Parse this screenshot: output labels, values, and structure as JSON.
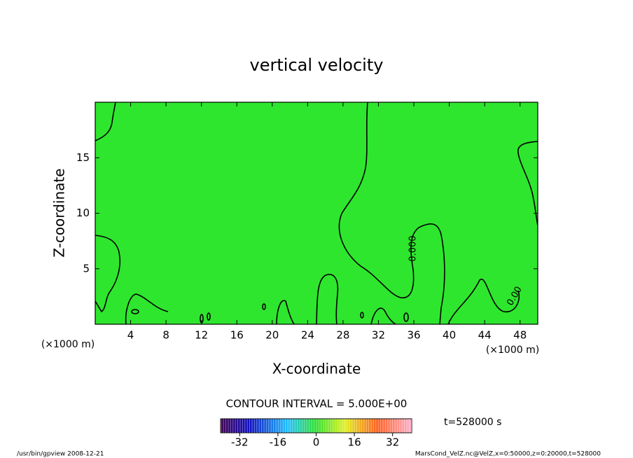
{
  "chart_data": {
    "type": "contour",
    "title": "vertical velocity",
    "xlabel": "X-coordinate",
    "ylabel": "Z-coordinate",
    "x_unit_label": "(×1000 m)",
    "xlim": [
      0,
      50
    ],
    "xticks": [
      4,
      8,
      12,
      16,
      20,
      24,
      28,
      32,
      36,
      40,
      44,
      48
    ],
    "ylim": [
      0,
      20
    ],
    "yticks": [
      5,
      10,
      15
    ],
    "field_color": "#2ee62e",
    "contour_color": "#000000",
    "contour_labels": [
      "0.000",
      "0.00"
    ],
    "contour_interval_label": "CONTOUR INTERVAL = 5.000E+00",
    "colorbar": {
      "lim": [
        -40,
        40
      ],
      "ticks": [
        -32,
        -16,
        0,
        16,
        32
      ]
    },
    "time_label": "t=528000 s",
    "footer_left": "/usr/bin/gpview  2008-12-21",
    "footer_right": "MarsCond_VelZ.nc@VelZ,x=0:50000,z=0:20000,t=528000"
  }
}
